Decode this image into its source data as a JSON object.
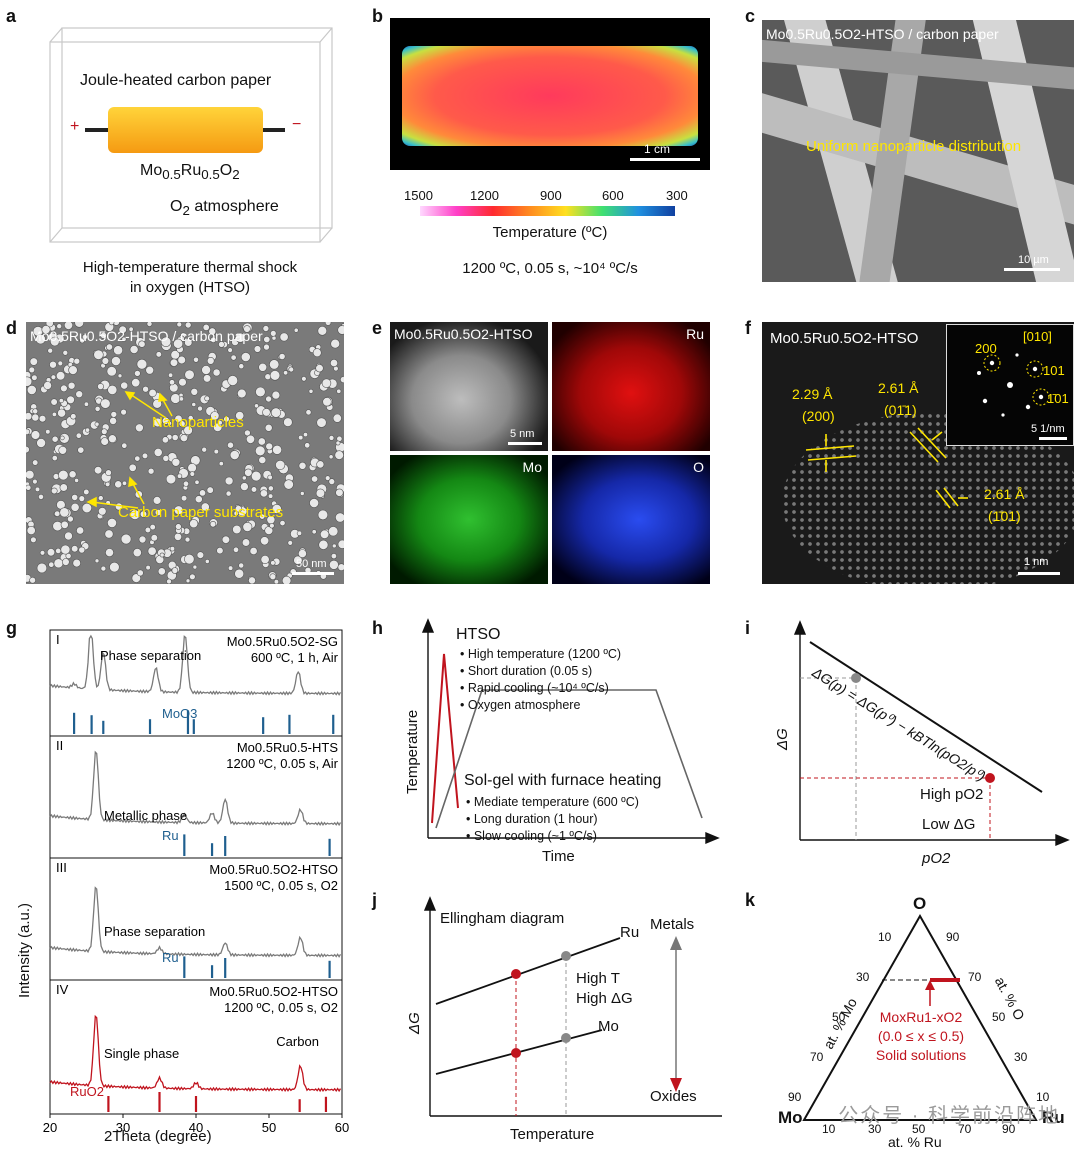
{
  "labels": {
    "a": "a",
    "b": "b",
    "c": "c",
    "d": "d",
    "e": "e",
    "f": "f",
    "g": "g",
    "h": "h",
    "i": "i",
    "j": "j",
    "k": "k"
  },
  "panel_a": {
    "title": "Joule-heated carbon paper",
    "plus": "+",
    "minus": "−",
    "material_main": "Mo",
    "material_sub1": "0.5",
    "material_mid": "Ru",
    "material_sub2": "0.5",
    "material_end": "O",
    "material_sub3": "2",
    "atm_main": "O",
    "atm_sub": "2",
    "atm_rest": " atmosphere",
    "caption_line1": "High-temperature thermal shock",
    "caption_line2": "in oxygen (HTSO)"
  },
  "panel_b": {
    "scale": "1 cm",
    "ticks": [
      "1500",
      "1200",
      "900",
      "600",
      "300"
    ],
    "axis_label": "Temperature (ºC)",
    "condition": "1200 ºC, 0.05 s, ~10⁴ ºC/s"
  },
  "panel_c": {
    "title": "Mo0.5Ru0.5O2-HTSO / carbon paper",
    "annotation": "Uniform nanoparticle distribution",
    "scale": "10 µm"
  },
  "panel_d": {
    "title": "Mo0.5Ru0.5O2-HTSO / carbon paper",
    "ann1": "Nanoparticles",
    "ann2": "Carbon paper substrates",
    "scale": "50 nm"
  },
  "panel_e": {
    "title": "Mo0.5Ru0.5O2-HTSO",
    "ru": "Ru",
    "mo": "Mo",
    "o": "O",
    "scale": "5 nm"
  },
  "panel_f": {
    "title": "Mo0.5Ru0.5O2-HTSO",
    "d1": "2.29 Å",
    "p1": "(200)",
    "d2": "2.61 Å",
    "p2": "(01̄1)",
    "d3": "2.61 Å",
    "p3": "(1̄01)",
    "inset_zone": "[010]",
    "inset_200": "200",
    "inset_101": "101",
    "inset_101b": "1̄01",
    "inset_scale": "5 1/nm",
    "scale": "1 nm"
  },
  "panel_g": {
    "ylabel": "Intensity (a.u.)",
    "xlabel": "2Theta (degree)",
    "xticks": [
      "20",
      "30",
      "40",
      "50",
      "60"
    ],
    "s1": {
      "roman": "I",
      "name": "Mo0.5Ru0.5O2-SG",
      "cond": "600 ºC, 1 h, Air",
      "ann": "Phase separation",
      "ref": "MoO3"
    },
    "s2": {
      "roman": "II",
      "name": "Mo0.5Ru0.5-HTS",
      "cond": "1200 ºC, 0.05 s, Air",
      "ann": "Metallic phase",
      "ref": "Ru"
    },
    "s3": {
      "roman": "III",
      "name": "Mo0.5Ru0.5O2-HTSO",
      "cond": "1500 ºC, 0.05 s, O2",
      "ann": "Phase separation",
      "ref": "Ru"
    },
    "s4": {
      "roman": "IV",
      "name": "Mo0.5Ru0.5O2-HTSO",
      "cond": "1200 ºC, 0.05 s, O2",
      "ann": "Single phase",
      "ann2": "Carbon",
      "ref": "RuO2"
    }
  },
  "panel_h": {
    "title": "HTSO",
    "b1": "• High temperature (1200 ºC)",
    "b2": "• Short duration (0.05 s)",
    "b3": "• Rapid cooling (~10⁴ ºC/s)",
    "b4": "• Oxygen atmosphere",
    "title2": "Sol-gel with furnace heating",
    "c1": "• Mediate temperature (600 ºC)",
    "c2": "• Long duration (1 hour)",
    "c3": "• Slow cooling (~1 ºC/s)",
    "ylabel": "Temperature",
    "xlabel": "Time"
  },
  "panel_i": {
    "equation": "ΔG(p) = ΔG(p⁰) − kBTln(pO2/p⁰)",
    "ylabel": "ΔG",
    "xlabel": "pO2",
    "high": "High pO2",
    "low": "Low ΔG"
  },
  "panel_j": {
    "title": "Ellingham diagram",
    "ru": "Ru",
    "mo": "Mo",
    "metals": "Metals",
    "oxides": "Oxides",
    "hight": "High T",
    "highg": "High ΔG",
    "ylabel": "ΔG",
    "xlabel": "Temperature"
  },
  "panel_k": {
    "top": "O",
    "left": "Mo",
    "right": "Ru",
    "lab_mo": "at. % Mo",
    "lab_o": "at. % O",
    "lab_ru": "at. % Ru",
    "left_ticks": [
      "90",
      "70",
      "50",
      "30",
      "10"
    ],
    "right_ticks": [
      "90",
      "70",
      "50",
      "30",
      "10"
    ],
    "bottom_ticks": [
      "10",
      "30",
      "50",
      "70",
      "90"
    ],
    "formula": "MoxRu1-xO2",
    "range": "(0.0 ≤ x ≤ 0.5)",
    "desc": "Solid solutions"
  },
  "watermark": "公众号 · 科学前沿阵地",
  "colors": {
    "red": "#c0141e",
    "yellow": "#ffe600",
    "grey": "#777777",
    "blue": "#1f5f8f"
  }
}
